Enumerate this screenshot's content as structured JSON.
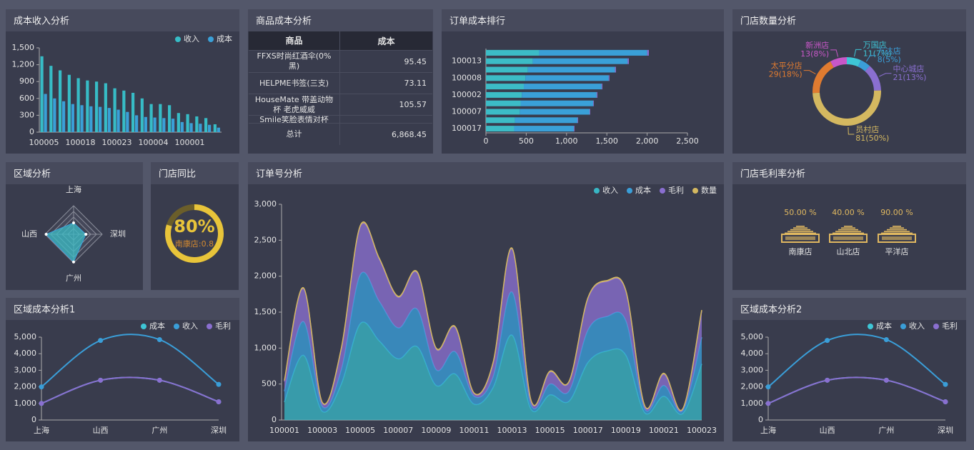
{
  "table": {
    "title": "商品成本分析",
    "columns": [
      "商品",
      "成本"
    ],
    "rows": [
      [
        "FFXS时尚红酒伞(0%黑)",
        "95.45"
      ],
      [
        "HELPME书签(三支)",
        "73.11"
      ],
      [
        "HouseMate 带盖动物杯 老虎威威",
        "105.57"
      ],
      [
        "Smile笑脸表情对杯"
      ]
    ],
    "total": [
      "总计",
      "6,868.45"
    ]
  },
  "chart_data": [
    {
      "type": "bar",
      "title": "成本收入分析",
      "categories": [
        "100005",
        null,
        null,
        null,
        "100018",
        null,
        null,
        null,
        "100023",
        null,
        null,
        null,
        "100004",
        null,
        null,
        null,
        "100001",
        null,
        null,
        null
      ],
      "series": [
        {
          "name": "收入",
          "color": "#37bcc6",
          "values": [
            1350,
            1180,
            1100,
            1020,
            960,
            920,
            900,
            870,
            780,
            740,
            700,
            600,
            500,
            500,
            480,
            340,
            320,
            280,
            250,
            140
          ]
        },
        {
          "name": "成本",
          "color": "#3aa0d8",
          "values": [
            680,
            600,
            550,
            500,
            480,
            460,
            450,
            430,
            400,
            360,
            300,
            270,
            260,
            250,
            240,
            180,
            160,
            150,
            130,
            80
          ]
        }
      ],
      "ylim": [
        0,
        1500
      ],
      "yticks": [
        0,
        300,
        600,
        900,
        {
          "value": 1200,
          "label": "1,200"
        },
        {
          "value": 1500,
          "label": "1,500"
        }
      ],
      "legend": "top-right"
    },
    {
      "type": "bar",
      "orientation": "horizontal",
      "stacked": true,
      "title": "订单成本排行",
      "categories": [
        null,
        "100013",
        null,
        "100008",
        null,
        "100002",
        null,
        "100007",
        null,
        "100017"
      ],
      "series": [
        {
          "color": "#3cbcc6",
          "values": [
            660,
            580,
            520,
            490,
            470,
            445,
            430,
            420,
            360,
            350
          ]
        },
        {
          "color": "#3aa0d8",
          "values": [
            1341,
            1178,
            1081,
            1033,
            965,
            928,
            901,
            866,
            776,
            741
          ]
        },
        {
          "color": "#8a6fd0",
          "values": [
            20,
            15,
            12,
            10,
            10,
            10,
            8,
            8,
            8,
            8
          ]
        }
      ],
      "xlim": [
        0,
        2500
      ],
      "xticks": [
        0,
        500,
        {
          "value": 1000,
          "label": "1,000"
        },
        {
          "value": 1500,
          "label": "1,500"
        },
        {
          "value": 2000,
          "label": "2,000"
        },
        {
          "value": 2500,
          "label": "2,500"
        }
      ]
    },
    {
      "type": "pie",
      "donut": true,
      "title": "门店数量分析",
      "categories": [
        "万国店",
        "万达店",
        "中心城店",
        "员村店",
        "太平分店",
        "新洲店"
      ],
      "values": [
        11,
        8,
        21,
        81,
        29,
        13
      ],
      "value_labels": [
        "11(7%)",
        "8(5%)",
        "21(13%)",
        "81(50%)",
        "29(18%)",
        "13(8%)"
      ],
      "colors": [
        "#3ec6d6",
        "#3a9ed8",
        "#8a6fd0",
        "#d4b860",
        "#e07b30",
        "#c857c8"
      ]
    },
    {
      "type": "radar",
      "title": "区域分析",
      "categories": [
        "上海",
        "深圳",
        "广州",
        "山西"
      ],
      "values": [
        2000,
        2150,
        4850,
        4800
      ],
      "rlim": [
        0,
        5000
      ],
      "color": "#3aa0d8"
    },
    {
      "type": "gauge",
      "title": "门店同比",
      "value": 80,
      "value_label": "80%",
      "detail": "南康店:0.8",
      "lim": [
        0,
        100
      ],
      "color": "#e8c43a"
    },
    {
      "type": "area",
      "stacked": true,
      "title": "订单号分析",
      "categories": [
        "100001",
        null,
        "100003",
        null,
        "100005",
        null,
        "100007",
        null,
        "100009",
        null,
        "100011",
        null,
        "100013",
        null,
        "100015",
        null,
        "100017",
        null,
        "100019",
        null,
        "100021",
        null,
        "100023"
      ],
      "series": [
        {
          "name": "收入",
          "color": "#38b6c4",
          "values": [
            250,
            900,
            120,
            500,
            1340,
            1100,
            850,
            1020,
            480,
            640,
            220,
            450,
            1180,
            150,
            350,
            260,
            800,
            960,
            900,
            100,
            330,
            90,
            780
          ]
        },
        {
          "name": "成本",
          "color": "#3a9ed8",
          "values": [
            150,
            470,
            70,
            200,
            680,
            550,
            430,
            520,
            220,
            310,
            110,
            150,
            600,
            60,
            150,
            140,
            450,
            480,
            480,
            50,
            150,
            40,
            370
          ]
        },
        {
          "name": "毛利",
          "color": "#8a6fd0",
          "values": [
            135,
            455,
            45,
            285,
            665,
            585,
            425,
            505,
            285,
            335,
            35,
            185,
            595,
            55,
            165,
            125,
            435,
            485,
            405,
            35,
            155,
            15,
            365
          ]
        },
        {
          "name": "数量",
          "color": "#d4b860",
          "values": [
            15,
            15,
            10,
            15,
            20,
            15,
            15,
            15,
            15,
            15,
            10,
            15,
            15,
            10,
            15,
            10,
            15,
            15,
            15,
            10,
            15,
            10,
            15
          ]
        }
      ],
      "ylim": [
        0,
        3000
      ],
      "yticks": [
        0,
        500,
        {
          "value": 1000,
          "label": "1,000"
        },
        {
          "value": 1500,
          "label": "1,500"
        },
        {
          "value": 2000,
          "label": "2,000"
        },
        {
          "value": 2500,
          "label": "2,500"
        },
        {
          "value": 3000,
          "label": "3,000"
        }
      ],
      "legend": "top-right"
    },
    {
      "type": "pictorial",
      "title": "门店毛利率分析",
      "categories": [
        "南康店",
        "山北店",
        "平洋店"
      ],
      "values": [
        50,
        40,
        90
      ],
      "value_labels": [
        "50.00 %",
        "40.00 %",
        "90.00 %"
      ],
      "color": "#e0b860"
    },
    {
      "type": "line",
      "title": "区域成本分析1",
      "categories": [
        "上海",
        "山西",
        "广州",
        "深圳"
      ],
      "series": [
        {
          "name": "成本",
          "color": "#3ec6d6",
          "values": [
            1000,
            2400,
            2400,
            1100
          ]
        },
        {
          "name": "收入",
          "color": "#3a9ed8",
          "values": [
            2000,
            4800,
            4850,
            2150
          ]
        },
        {
          "name": "毛利",
          "color": "#8a6fd0",
          "values": [
            1000,
            2400,
            2400,
            1100
          ]
        }
      ],
      "ylim": [
        0,
        5000
      ],
      "yticks": [
        0,
        {
          "value": 1000,
          "label": "1,000"
        },
        {
          "value": 2000,
          "label": "2,000"
        },
        {
          "value": 3000,
          "label": "3,000"
        },
        {
          "value": 4000,
          "label": "4,000"
        },
        {
          "value": 5000,
          "label": "5,000"
        }
      ],
      "legend": "top-right"
    },
    {
      "type": "line",
      "title": "区域成本分析2",
      "categories": [
        "上海",
        "山西",
        "广州",
        "深圳"
      ],
      "series": [
        {
          "name": "成本",
          "color": "#3ec6d6",
          "values": [
            1000,
            2400,
            2400,
            1100
          ]
        },
        {
          "name": "收入",
          "color": "#3a9ed8",
          "values": [
            2000,
            4800,
            4850,
            2150
          ]
        },
        {
          "name": "毛利",
          "color": "#8a6fd0",
          "values": [
            1000,
            2400,
            2400,
            1100
          ]
        }
      ],
      "ylim": [
        0,
        5000
      ],
      "yticks": [
        0,
        {
          "value": 1000,
          "label": "1,000"
        },
        {
          "value": 2000,
          "label": "2,000"
        },
        {
          "value": 3000,
          "label": "3,000"
        },
        {
          "value": 4000,
          "label": "4,000"
        },
        {
          "value": 5000,
          "label": "5,000"
        }
      ],
      "legend": "top-right"
    }
  ]
}
